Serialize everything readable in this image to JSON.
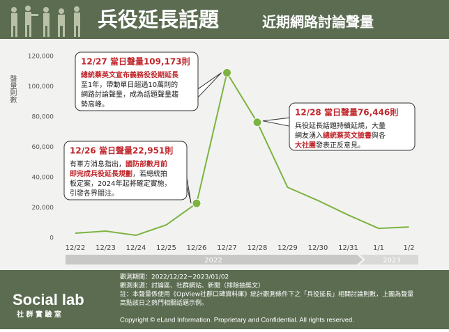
{
  "chart_data": {
    "type": "line",
    "title": "兵役延長話題",
    "subtitle": "近期網路討論聲量",
    "y_label": "聲量則數",
    "categories": [
      "12/22",
      "12/23",
      "12/24",
      "12/25",
      "12/26",
      "12/27",
      "12/28",
      "12/29",
      "12/30",
      "12/31",
      "1/1",
      "1/2"
    ],
    "values": [
      3200,
      4600,
      1800,
      8700,
      22951,
      109173,
      76446,
      33500,
      24800,
      15200,
      6400,
      7300
    ],
    "color": "#7cb342",
    "ylim": [
      0,
      120000
    ],
    "yticks": [
      0,
      {
        "value": 20000,
        "label": "20,000"
      },
      {
        "value": 40000,
        "label": "40,000"
      },
      {
        "value": 60000,
        "label": "60,000"
      },
      {
        "value": 80000,
        "label": "80,000"
      },
      {
        "value": 100000,
        "label": "100,000"
      },
      {
        "value": 120000,
        "label": "120,000"
      }
    ],
    "grid": false,
    "years": [
      "2022",
      "2023"
    ],
    "annotations": [
      {
        "title": "12/27 當日聲量109,173則",
        "lines": [
          [
            {
              "text": "總統蔡英文宣布義務役役期延長",
              "emphasis": true
            }
          ],
          [
            "至1年，帶動單日超過10萬則的"
          ],
          [
            "網路討論聲量，成為話題聲量趨"
          ],
          [
            "勢高峰。"
          ]
        ]
      },
      {
        "title": "12/28 當日聲量76,446則",
        "lines": [
          [
            "兵役延長話題持續延燒，大量"
          ],
          [
            "網友湧入",
            {
              "text": "總統蔡英文臉書",
              "emphasis": true
            },
            "與各"
          ],
          [
            {
              "text": "大社團",
              "emphasis": true
            },
            "發表正反意見。"
          ]
        ]
      },
      {
        "title": "12/26 當日聲量22,951則",
        "lines": [
          [
            "有軍方消息指出，",
            {
              "text": "國防部數月前",
              "emphasis": true
            }
          ],
          [
            {
              "text": "即完成兵役延長規劃",
              "emphasis": true
            },
            "，若總統拍"
          ],
          [
            "板定案，2024年起將確定實施，"
          ],
          [
            "引發各界關注。"
          ]
        ]
      }
    ]
  },
  "footer": {
    "logo": "Social lab",
    "logo_sub": "社 群 實 驗 室",
    "notes": [
      "觀測期間：2022/12/22~2023/01/02",
      "觀測來源：討論區、社群網站、新聞（排除抽獎文）",
      "註：本聲量係使用《OpView社群口碑資料庫》統計觀測條件下之「兵役延長」相關討論則數，上圖為聲量",
      "高點該日之熱門相關話題示例。"
    ],
    "copyright": "Copyright © eLand Information. Proprietary and Confidential. All rights reserved."
  }
}
